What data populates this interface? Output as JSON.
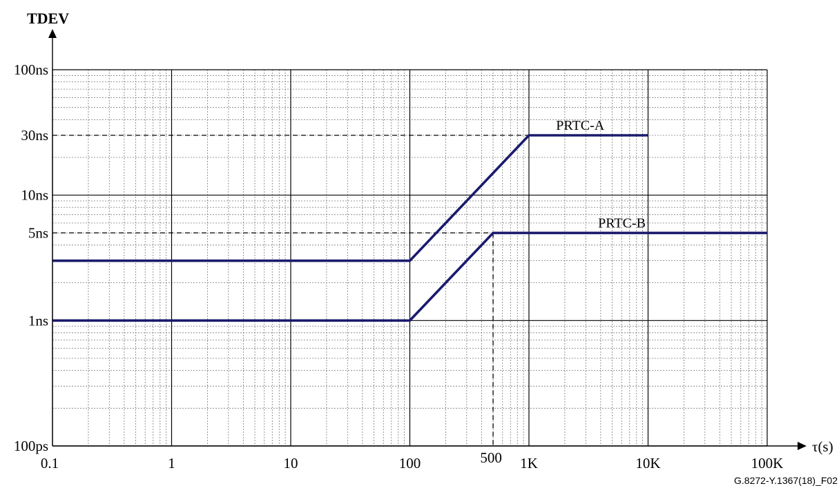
{
  "chart_data": {
    "type": "line",
    "x_scale": "log",
    "y_scale": "log",
    "xlim": [
      0.1,
      100000
    ],
    "ylim": [
      "100ps",
      "100ns"
    ],
    "grid": true,
    "xlabel": "τ(s)",
    "ylabel": "TDEV",
    "x_ticks": [
      "0.1",
      "1",
      "10",
      "100",
      "500",
      "1K",
      "10K",
      "100K"
    ],
    "y_ticks": [
      "100ps",
      "1ns",
      "5ns",
      "10ns",
      "30ns",
      "100ns"
    ],
    "series": [
      {
        "name": "PRTC-A",
        "x": [
          0.1,
          100,
          1000,
          10000
        ],
        "y_ns": [
          3,
          3,
          30,
          30
        ],
        "color": "#1a1a6e"
      },
      {
        "name": "PRTC-B",
        "x": [
          0.1,
          100,
          500,
          100000
        ],
        "y_ns": [
          1,
          1,
          5,
          5
        ],
        "color": "#1a1a6e"
      }
    ],
    "reference_lines": [
      {
        "axis": "y",
        "value_ns": 30,
        "x_to": 1000,
        "style": "dashed"
      },
      {
        "axis": "y",
        "value_ns": 5,
        "x_to": 500,
        "style": "dashed"
      },
      {
        "axis": "x",
        "value": 500,
        "y_to_ns": 5,
        "style": "dashed"
      }
    ]
  },
  "figure_id": "G.8272-Y.1367(18)_F02"
}
